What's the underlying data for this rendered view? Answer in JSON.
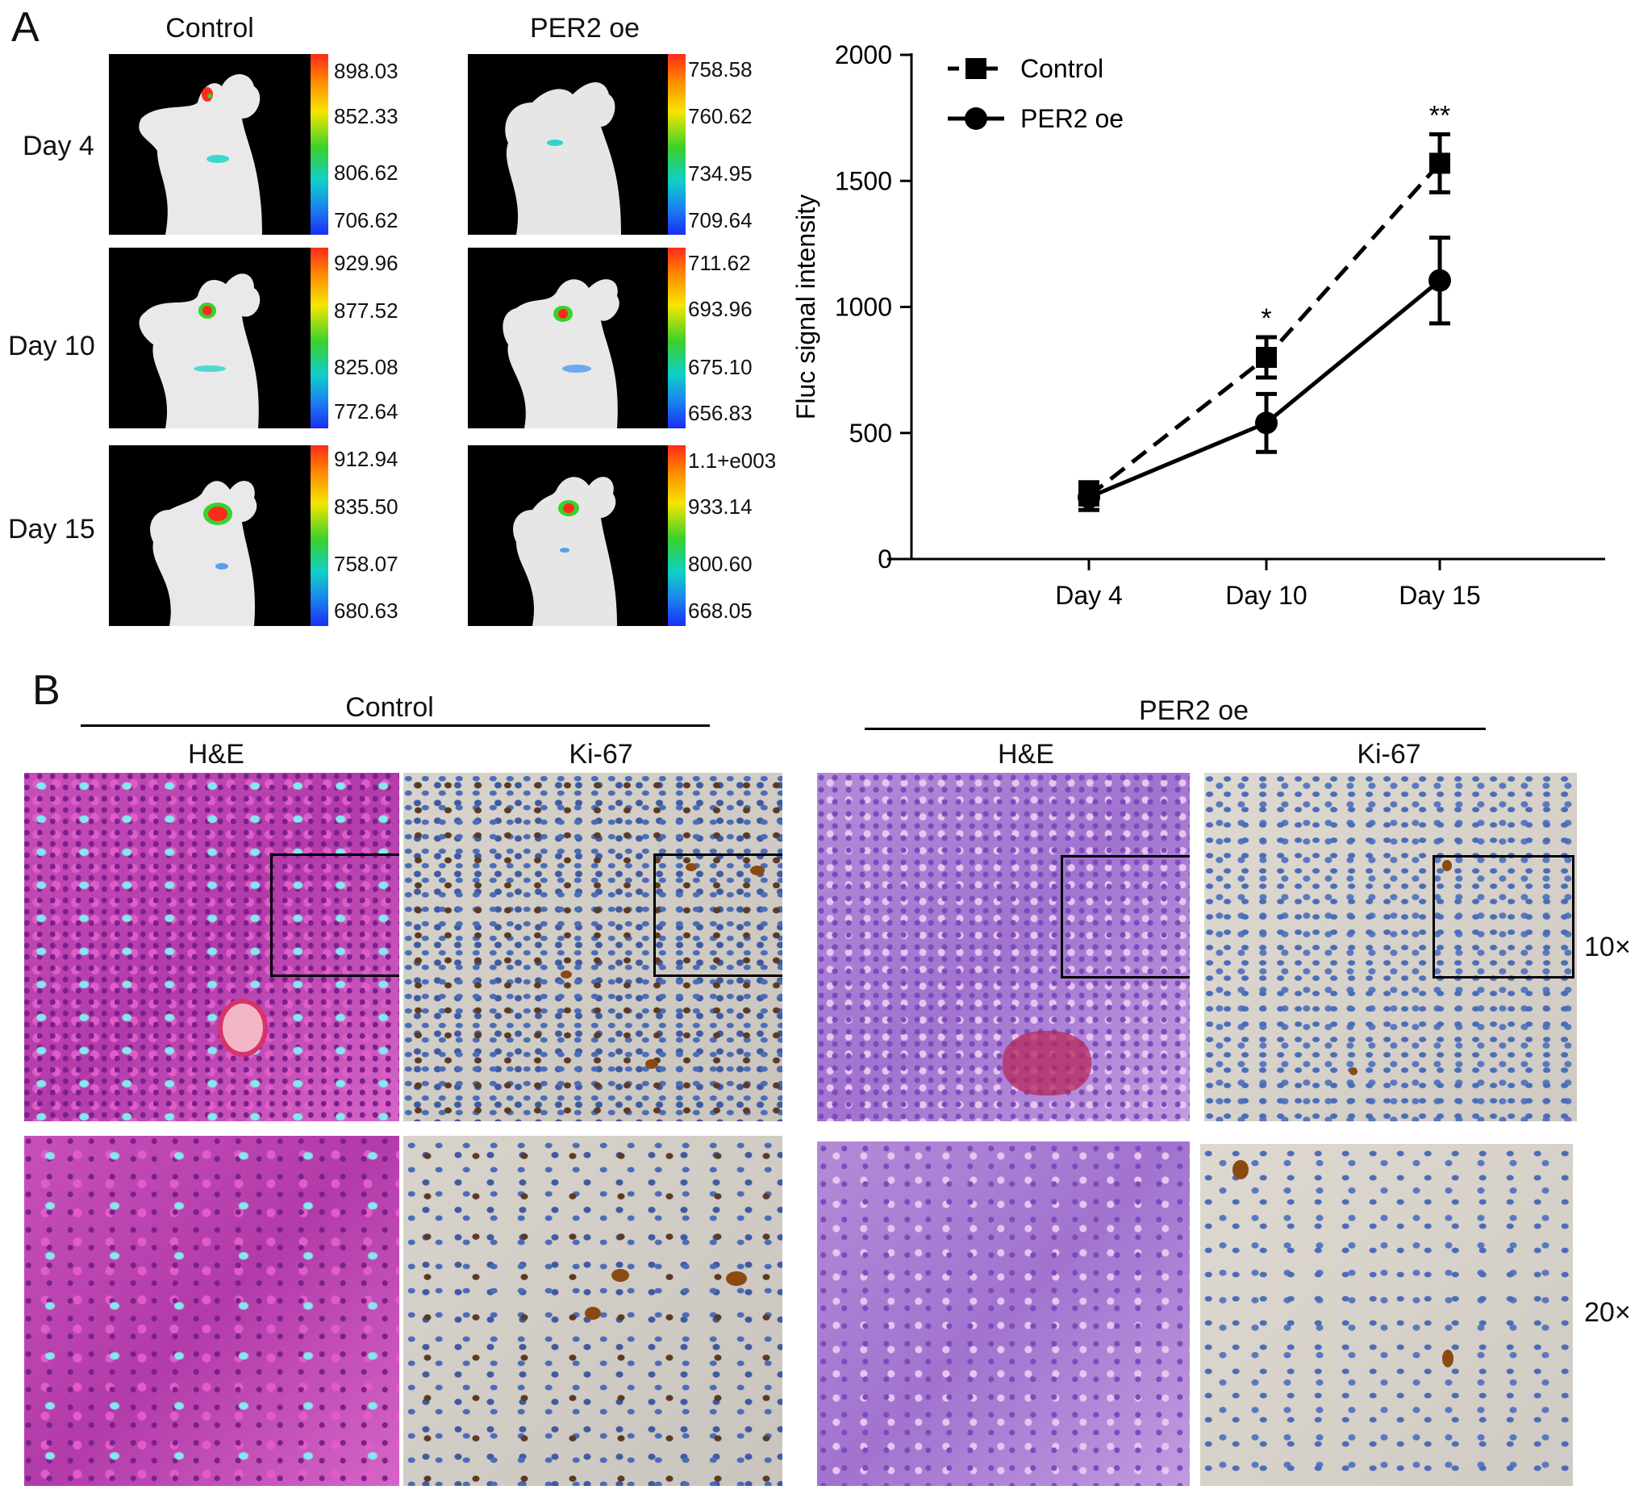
{
  "panel_a": {
    "letter": "A",
    "col_headers": [
      "Control",
      "PER2 oe"
    ],
    "rows": [
      {
        "day": "Day 4",
        "control_scale": [
          "898.03",
          "852.33",
          "806.62",
          "706.62"
        ],
        "per2_scale": [
          "758.58",
          "760.62",
          "734.95",
          "709.64"
        ]
      },
      {
        "day": "Day 10",
        "control_scale": [
          "929.96",
          "877.52",
          "825.08",
          "772.64"
        ],
        "per2_scale": [
          "711.62",
          "693.96",
          "675.10",
          "656.83"
        ]
      },
      {
        "day": "Day 15",
        "control_scale": [
          "912.94",
          "835.50",
          "758.07",
          "680.63"
        ],
        "per2_scale": [
          "1.1+e003",
          "933.14",
          "800.60",
          "668.05"
        ]
      }
    ]
  },
  "chart_data": {
    "type": "line",
    "title": "",
    "xlabel": "",
    "ylabel": "Fluc signal intensity",
    "categories": [
      "Day 4",
      "Day 10",
      "Day 15"
    ],
    "ylim": [
      0,
      2000
    ],
    "yticks": [
      "0",
      "500",
      "1000",
      "1500",
      "2000"
    ],
    "series": [
      {
        "name": "Control",
        "style": "dashed",
        "marker": "square",
        "values": [
          250,
          800,
          1570
        ],
        "errors": [
          55,
          80,
          115
        ]
      },
      {
        "name": "PER2 oe",
        "style": "solid",
        "marker": "circle",
        "values": [
          245,
          540,
          1105
        ],
        "errors": [
          50,
          115,
          170
        ]
      }
    ],
    "annotations": [
      {
        "category": "Day 10",
        "text": "*"
      },
      {
        "category": "Day 15",
        "text": "**"
      }
    ],
    "legend": "top-left",
    "grid": false
  },
  "panel_b": {
    "letter": "B",
    "group_headers": [
      "Control",
      "PER2 oe"
    ],
    "stain_headers": [
      "H&E",
      "Ki-67",
      "H&E",
      "Ki-67"
    ],
    "magnifications": [
      "10×",
      "20×"
    ]
  }
}
